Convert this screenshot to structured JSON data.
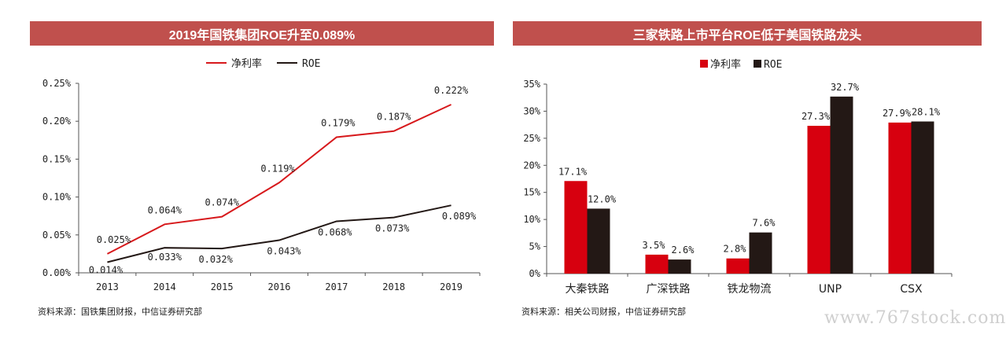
{
  "left": {
    "title": "2019年国铁集团ROE升至0.089%",
    "source": "资料来源：国铁集团财报，中信证券研究部",
    "chart_data": {
      "type": "line",
      "categories": [
        "2013",
        "2014",
        "2015",
        "2016",
        "2017",
        "2018",
        "2019"
      ],
      "series": [
        {
          "name": "净利率",
          "color": "#d7191c",
          "values": [
            0.025,
            0.064,
            0.074,
            0.119,
            0.179,
            0.187,
            0.222
          ],
          "labels": [
            "0.025%",
            "0.064%",
            "0.074%",
            "0.119%",
            "0.179%",
            "0.187%",
            "0.222%"
          ]
        },
        {
          "name": "ROE",
          "color": "#231815",
          "values": [
            0.014,
            0.033,
            0.032,
            0.043,
            0.068,
            0.073,
            0.089
          ],
          "labels": [
            "0.014%",
            "0.033%",
            "0.032%",
            "0.043%",
            "0.068%",
            "0.073%",
            "0.089%"
          ]
        }
      ],
      "ylim": [
        0,
        0.25
      ],
      "yticks": [
        "0.00%",
        "0.05%",
        "0.10%",
        "0.15%",
        "0.20%",
        "0.25%"
      ],
      "legend": "top-center",
      "grid": false
    }
  },
  "right": {
    "title": "三家铁路上市平台ROE低于美国铁路龙头",
    "source": "资料来源：相关公司财报，中信证券研究部",
    "chart_data": {
      "type": "bar",
      "categories": [
        "大秦铁路",
        "广深铁路",
        "铁龙物流",
        "UNP",
        "CSX"
      ],
      "series": [
        {
          "name": "净利率",
          "color": "#d7000f",
          "values": [
            17.1,
            3.5,
            2.8,
            27.3,
            27.9
          ],
          "labels": [
            "17.1%",
            "3.5%",
            "2.8%",
            "27.3%",
            "27.9%"
          ]
        },
        {
          "name": "ROE",
          "color": "#231815",
          "values": [
            12.0,
            2.6,
            7.6,
            32.7,
            28.1
          ],
          "labels": [
            "12.0%",
            "2.6%",
            "7.6%",
            "32.7%",
            "28.1%"
          ]
        }
      ],
      "ylim": [
        0,
        35
      ],
      "yticks": [
        "0%",
        "5%",
        "10%",
        "15%",
        "20%",
        "25%",
        "30%",
        "35%"
      ],
      "legend": "top-center",
      "grid": false
    }
  },
  "watermark": "www.767stock.com"
}
